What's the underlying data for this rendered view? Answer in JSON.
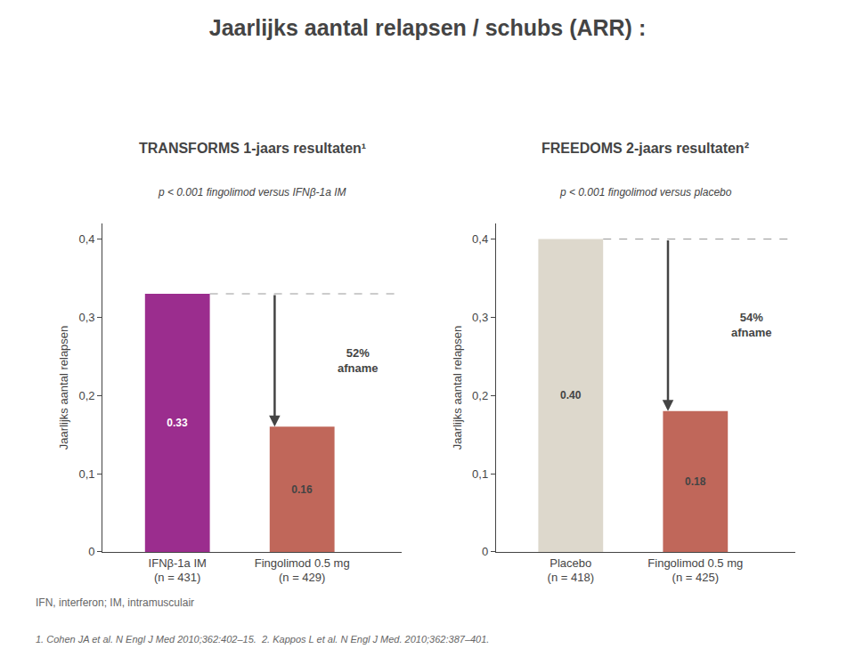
{
  "title": "Jaarlijks aantal relapsen / schubs (ARR) :",
  "footnotes": [
    "IFN, interferon; IM, intramusculair",
    "1. Cohen JA et al. N Engl J Med 2010;362:402–15.  2. Kappos L et al. N Engl J Med. 2010;362:387–401."
  ],
  "chart_data": [
    {
      "type": "bar",
      "title": "TRANSFORMS 1-jaars resultaten¹",
      "subtitle": "p < 0.001 fingolimod versus IFNβ-1a IM",
      "categories": [
        "IFNβ-1a IM\n(n = 431)",
        "Fingolimod 0.5 mg\n(n = 429)"
      ],
      "values": [
        0.33,
        0.16
      ],
      "value_labels": [
        "0.33",
        "0.16"
      ],
      "data_labels": true,
      "colors": [
        "#9b2d8e",
        "#c0675a"
      ],
      "ylabel": "Jaarlijks aantal relapsen",
      "ylim": [
        0,
        0.42
      ],
      "yticks": [
        0,
        {
          "value": 0.1,
          "label": "0,1"
        },
        {
          "value": 0.2,
          "label": "0,2"
        },
        {
          "value": 0.3,
          "label": "0,3"
        },
        {
          "value": 0.4,
          "label": "0,4"
        }
      ],
      "reference_line": 0.33,
      "annotations": [
        "52%\nafname"
      ],
      "grid": false
    },
    {
      "type": "bar",
      "title": "FREEDOMS 2-jaars resultaten²",
      "subtitle": "p < 0.001 fingolimod versus placebo",
      "categories": [
        "Placebo\n(n = 418)",
        "Fingolimod 0.5 mg\n(n = 425)"
      ],
      "values": [
        0.4,
        0.18
      ],
      "value_labels": [
        "0.40",
        "0.18"
      ],
      "data_labels": true,
      "colors": [
        "#ddd8cc",
        "#c0675a"
      ],
      "ylabel": "Jaarlijks aantal relapsen",
      "ylim": [
        0,
        0.42
      ],
      "yticks": [
        0,
        {
          "value": 0.1,
          "label": "0,1"
        },
        {
          "value": 0.2,
          "label": "0,2"
        },
        {
          "value": 0.3,
          "label": "0,3"
        },
        {
          "value": 0.4,
          "label": "0,4"
        }
      ],
      "reference_line": 0.4,
      "annotations": [
        "54%\nafname"
      ],
      "grid": false
    }
  ]
}
